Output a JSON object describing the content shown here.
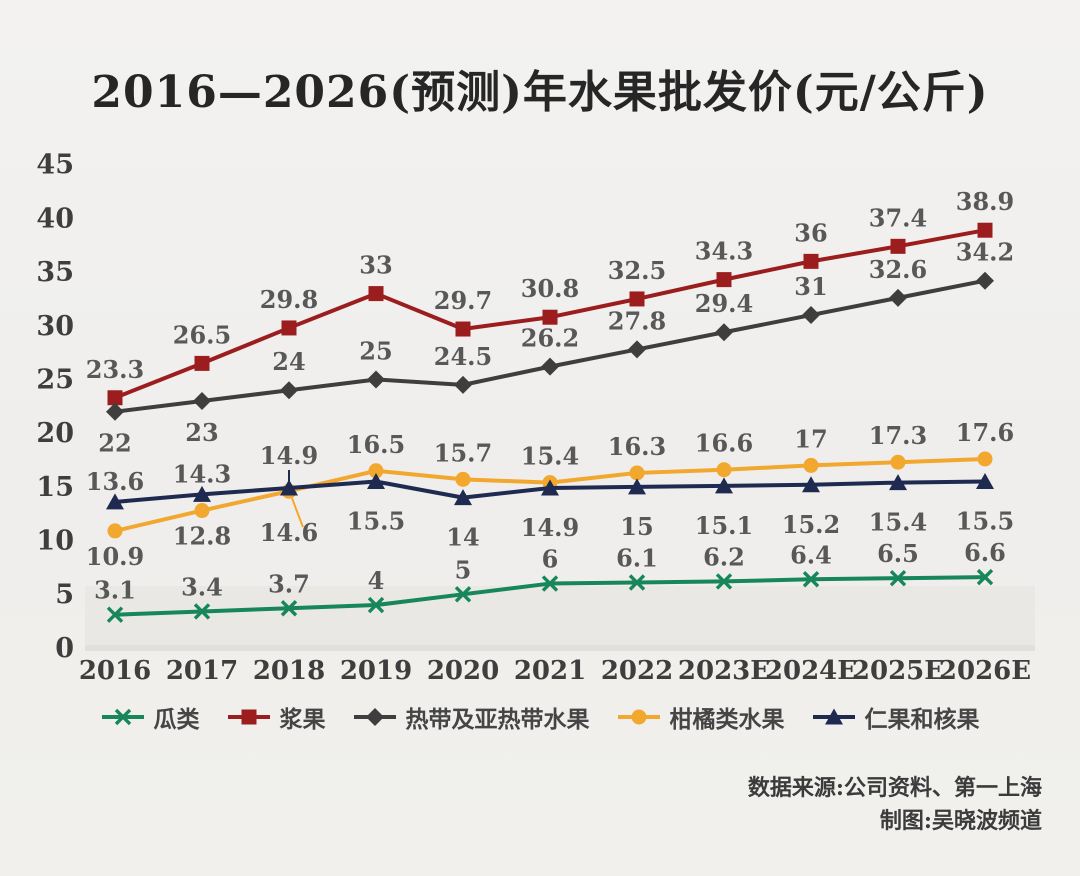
{
  "title": "2016—2026(预测)年水果批发价(元/公斤)",
  "source": {
    "line1": "数据来源:公司资料、第一上海",
    "line2": "制图:吴晓波频道"
  },
  "colors": {
    "background": "#f1f0ee",
    "title_text": "#262626",
    "axis_text": "#3e3e3e",
    "data_label_text": "#585858",
    "plot_band": "#e9e8e5",
    "axis_strip": "#e1e0dd"
  },
  "chart_data": {
    "type": "line",
    "title": "2016—2026(预测)年水果批发价(元/公斤)",
    "xlabel": "",
    "ylabel": "",
    "categories": [
      "2016",
      "2017",
      "2018",
      "2019",
      "2020",
      "2021",
      "2022",
      "2023E",
      "2024E",
      "2025E",
      "2026E"
    ],
    "y_ticks": [
      0,
      5,
      10,
      15,
      20,
      25,
      30,
      35,
      40,
      45
    ],
    "ylim": [
      0,
      45
    ],
    "grid": false,
    "legend_position": "bottom",
    "series": [
      {
        "name": "瓜类",
        "key": "melons",
        "color": "#17865a",
        "marker": "x",
        "values": [
          3.1,
          3.4,
          3.7,
          4,
          5,
          6,
          6.1,
          6.2,
          6.4,
          6.5,
          6.6
        ],
        "label_sides": [
          "a",
          "a",
          "a",
          "a",
          "a",
          "a",
          "a",
          "a",
          "a",
          "a",
          "a"
        ]
      },
      {
        "name": "浆果",
        "key": "berries",
        "color": "#9c1d1d",
        "marker": "square",
        "values": [
          23.3,
          26.5,
          29.8,
          33,
          29.7,
          30.8,
          32.5,
          34.3,
          36,
          37.4,
          38.9
        ],
        "label_sides": [
          "a",
          "a",
          "a",
          "a",
          "a",
          "a",
          "a",
          "a",
          "a",
          "a",
          "a"
        ]
      },
      {
        "name": "热带及亚热带水果",
        "key": "tropical",
        "color": "#3e3e3e",
        "marker": "diamond",
        "values": [
          22,
          23,
          24,
          25,
          24.5,
          26.2,
          27.8,
          29.4,
          31,
          32.6,
          34.2
        ],
        "label_sides": [
          "b",
          "b",
          "a",
          "a",
          "a",
          "a",
          "a",
          "a",
          "a",
          "a",
          "a"
        ]
      },
      {
        "name": "柑橘类水果",
        "key": "citrus",
        "color": "#f2a72e",
        "marker": "circle",
        "values": [
          10.9,
          12.8,
          14.6,
          16.5,
          15.7,
          15.4,
          16.3,
          16.6,
          17,
          17.3,
          17.6
        ],
        "label_sides": [
          "b",
          "b",
          "bl",
          "a",
          "a",
          "a",
          "a",
          "a",
          "a",
          "a",
          "a"
        ]
      },
      {
        "name": "仁果和核果",
        "key": "pome-stone",
        "color": "#1e2a50",
        "marker": "triangle",
        "values": [
          13.6,
          14.3,
          14.9,
          15.5,
          14,
          14.9,
          15,
          15.1,
          15.2,
          15.4,
          15.5
        ],
        "label_sides": [
          "a",
          "a",
          "al",
          "b",
          "b",
          "b",
          "b",
          "b",
          "b",
          "b",
          "b"
        ]
      }
    ]
  }
}
